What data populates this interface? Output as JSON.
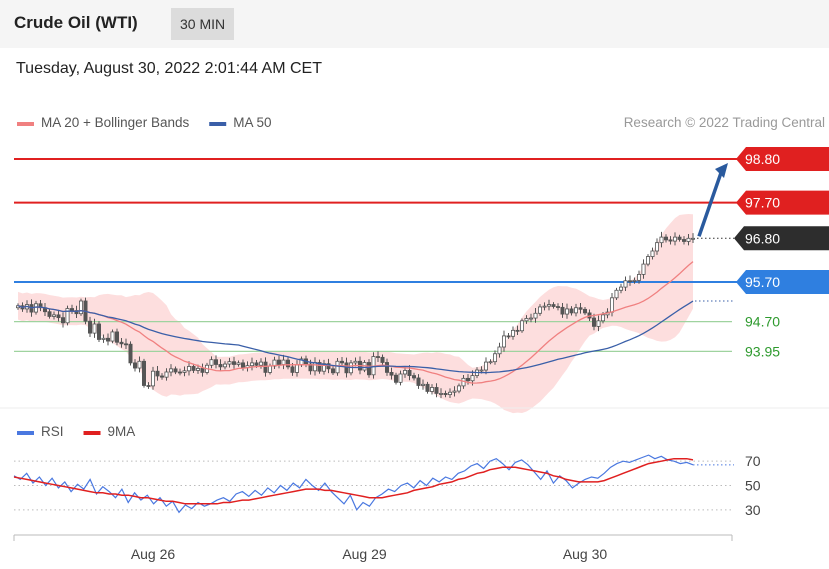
{
  "header": {
    "title": "Crude Oil (WTI)",
    "interval": "30 MIN"
  },
  "datetime": "Tuesday, August 30, 2022 2:01:44 AM CET",
  "credit": "Research © 2022 Trading Central",
  "colors": {
    "ma20": "#f08080",
    "ma50": "#3a5fa8",
    "resistance": "#e02020",
    "support": "#2f7fe0",
    "green": "#2e9a2e",
    "bands": "#fdd8d8",
    "rsi": "#4a78e0",
    "rsi_ma": "#e02020",
    "candle": "#555555",
    "arrow": "#2a5a9e"
  },
  "chart_data": [
    {
      "type": "candlestick",
      "legend": [
        {
          "name": "MA 20 + Bollinger Bands",
          "color": "#f08080"
        },
        {
          "name": "MA 50",
          "color": "#3a5fa8"
        }
      ],
      "legend_position": "top-left",
      "ylim": [
        92.8,
        98.95
      ],
      "x_ticks": [
        {
          "label": "Aug 26",
          "index": 30
        },
        {
          "label": "Aug 29",
          "index": 77
        },
        {
          "label": "Aug 30",
          "index": 126
        }
      ],
      "levels": [
        {
          "label": "98.80",
          "value": 98.8,
          "style": "resistance"
        },
        {
          "label": "97.70",
          "value": 97.7,
          "style": "resistance"
        },
        {
          "label": "96.80",
          "value": 96.8,
          "style": "last"
        },
        {
          "label": "95.70",
          "value": 95.7,
          "style": "support"
        },
        {
          "label": "94.70",
          "value": 94.7,
          "style": "green"
        },
        {
          "label": "93.95",
          "value": 93.95,
          "style": "green"
        }
      ],
      "close": [
        95.1,
        95.02,
        95.13,
        94.94,
        95.15,
        95.05,
        94.95,
        94.83,
        94.87,
        94.8,
        94.67,
        95.03,
        94.98,
        94.9,
        95.22,
        94.71,
        94.41,
        94.64,
        94.25,
        94.28,
        94.21,
        94.44,
        94.18,
        94.14,
        94.13,
        93.66,
        93.53,
        93.7,
        93.09,
        93.08,
        93.45,
        93.33,
        93.3,
        93.43,
        93.51,
        93.43,
        93.42,
        93.46,
        93.57,
        93.47,
        93.52,
        93.42,
        93.6,
        93.74,
        93.62,
        93.56,
        93.63,
        93.69,
        93.62,
        93.66,
        93.54,
        93.59,
        93.66,
        93.6,
        93.68,
        93.42,
        93.58,
        93.73,
        93.62,
        93.73,
        93.56,
        93.42,
        93.61,
        93.76,
        93.63,
        93.46,
        93.67,
        93.45,
        93.64,
        93.51,
        93.41,
        93.7,
        93.66,
        93.41,
        93.66,
        93.7,
        93.48,
        93.67,
        93.36,
        93.82,
        93.8,
        93.67,
        93.42,
        93.35,
        93.17,
        93.38,
        93.47,
        93.34,
        93.28,
        93.09,
        93.12,
        92.94,
        93.04,
        92.89,
        92.89,
        92.86,
        92.92,
        92.95,
        93.08,
        93.27,
        93.21,
        93.34,
        93.48,
        93.48,
        93.68,
        93.69,
        93.89,
        94.06,
        94.34,
        94.33,
        94.48,
        94.47,
        94.72,
        94.78,
        94.79,
        94.91,
        95.07,
        95.09,
        95.13,
        95.08,
        95.06,
        94.89,
        95.02,
        94.92,
        95.05,
        95.01,
        94.92,
        94.79,
        94.58,
        94.72,
        94.87,
        94.94,
        95.3,
        95.49,
        95.57,
        95.73,
        95.72,
        95.74,
        95.89,
        96.15,
        96.34,
        96.48,
        96.69,
        96.83,
        96.76,
        96.73,
        96.83,
        96.77,
        96.72,
        96.8,
        96.8
      ]
    },
    {
      "type": "line",
      "legend": [
        {
          "name": "RSI",
          "color": "#4a78e0"
        },
        {
          "name": "9MA",
          "color": "#e02020"
        }
      ],
      "legend_position": "top-left",
      "ylim": [
        20,
        80
      ],
      "y_ticks": [
        {
          "label": "70",
          "value": 70
        },
        {
          "label": "50",
          "value": 50
        },
        {
          "label": "30",
          "value": 30
        }
      ],
      "rsi": [
        58,
        55,
        60,
        52,
        57,
        50,
        56,
        48,
        53,
        45,
        51,
        47,
        55,
        43,
        49,
        45,
        40,
        47,
        36,
        44,
        38,
        42,
        35,
        40,
        33,
        37,
        28,
        34,
        31,
        36,
        33,
        35,
        38,
        40,
        37,
        43,
        45,
        41,
        46,
        42,
        48,
        44,
        50,
        46,
        52,
        48,
        55,
        50,
        46,
        52,
        45,
        40,
        35,
        42,
        30,
        36,
        33,
        40,
        43,
        47,
        45,
        50,
        52,
        48,
        54,
        50,
        56,
        53,
        57,
        55,
        60,
        62,
        66,
        68,
        64,
        70,
        72,
        68,
        63,
        69,
        71,
        67,
        61,
        55,
        62,
        52,
        58,
        54,
        48,
        52,
        55,
        57,
        56,
        60,
        65,
        68,
        70,
        69,
        71,
        73,
        75,
        72,
        74,
        71,
        70,
        68,
        69,
        67
      ],
      "rsi_ma": [
        57,
        56,
        55,
        54,
        53,
        52,
        51,
        50,
        49,
        48,
        47,
        46,
        45,
        44,
        44,
        43,
        43,
        42,
        42,
        41,
        40,
        40,
        39,
        38,
        37,
        37,
        36,
        35,
        35,
        35,
        35,
        35,
        35,
        36,
        36,
        37,
        38,
        38,
        39,
        40,
        41,
        42,
        43,
        44,
        45,
        46,
        47,
        47,
        47,
        46,
        46,
        45,
        44,
        43,
        42,
        41,
        40,
        40,
        40,
        41,
        42,
        43,
        44,
        46,
        47,
        48,
        49,
        51,
        52,
        53,
        55,
        56,
        58,
        60,
        61,
        63,
        64,
        65,
        65,
        65,
        64,
        63,
        62,
        61,
        60,
        58,
        57,
        55,
        54,
        53,
        53,
        53,
        53,
        54,
        56,
        58,
        60,
        62,
        64,
        66,
        68,
        69,
        70,
        71,
        72,
        72,
        72,
        71
      ]
    }
  ]
}
